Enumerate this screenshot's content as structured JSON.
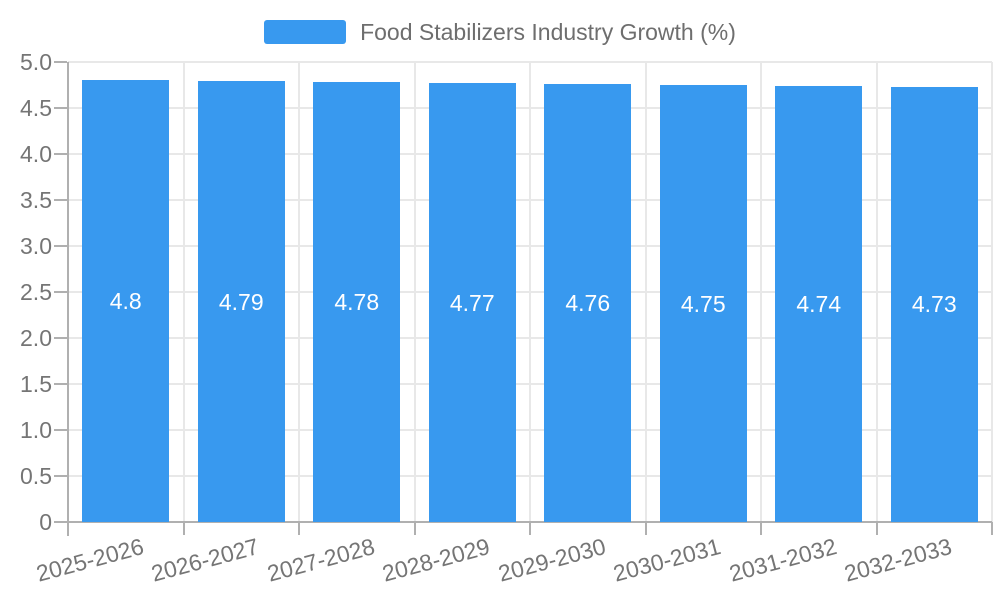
{
  "chart_data": {
    "type": "bar",
    "title": "Food Stabilizers Industry Growth (%)",
    "categories": [
      "2025-2026",
      "2026-2027",
      "2027-2028",
      "2028-2029",
      "2029-2030",
      "2030-2031",
      "2031-2032",
      "2032-2033"
    ],
    "values": [
      4.8,
      4.79,
      4.78,
      4.77,
      4.76,
      4.75,
      4.74,
      4.73
    ],
    "value_labels": [
      "4.8",
      "4.79",
      "4.78",
      "4.77",
      "4.76",
      "4.75",
      "4.74",
      "4.73"
    ],
    "xlabel": "",
    "ylabel": "",
    "ylim": [
      0,
      5
    ],
    "ytick_labels": [
      "0",
      "0.5",
      "1.0",
      "1.5",
      "2.0",
      "2.5",
      "3.0",
      "3.5",
      "4.0",
      "4.5",
      "5.0"
    ],
    "grid": "on",
    "legend_position": "top-center",
    "colors": {
      "bar": "#3899ef",
      "bar_value_text": "#ffffff",
      "grid_line": "#e8e8e8",
      "axis_line": "#b0b0b0",
      "tick_text": "#757575",
      "legend_text": "#6e6e6e"
    }
  }
}
